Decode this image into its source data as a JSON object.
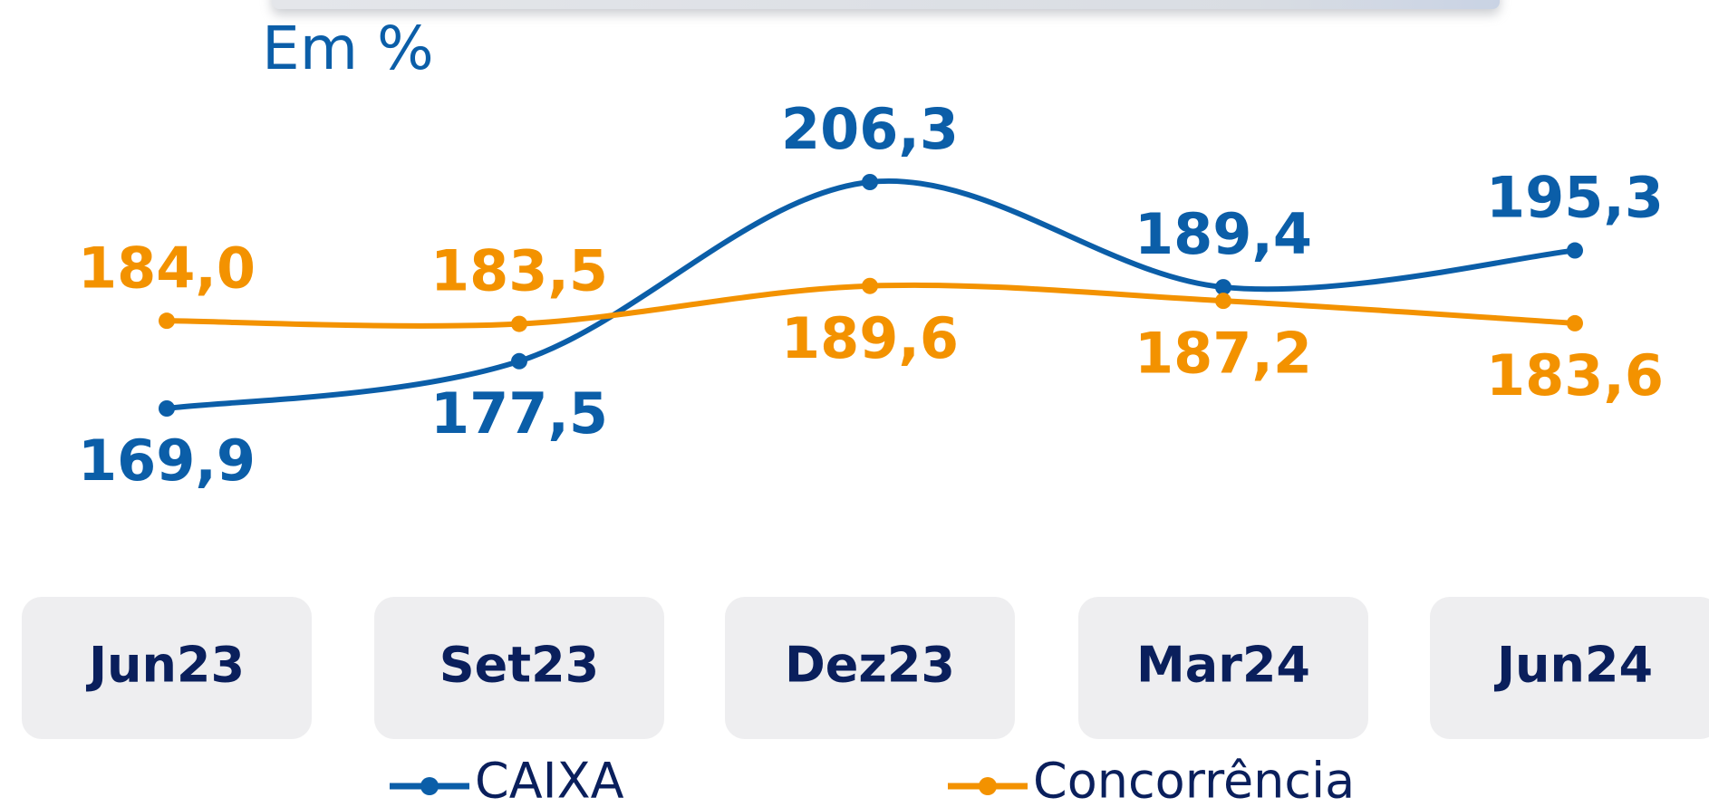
{
  "chart_data": {
    "type": "line",
    "subtitle": "Em %",
    "categories": [
      "Jun23",
      "Set23",
      "Dez23",
      "Mar24",
      "Jun24"
    ],
    "series": [
      {
        "name": "CAIXA",
        "color": "#0b5ea8",
        "values": [
          169.9,
          177.5,
          206.3,
          189.4,
          195.3
        ],
        "value_labels": [
          "169,9",
          "177,5",
          "206,3",
          "189,4",
          "195,3"
        ]
      },
      {
        "name": "Concorrência",
        "color": "#f39200",
        "values": [
          184.0,
          183.5,
          189.6,
          187.2,
          183.6
        ],
        "value_labels": [
          "184,0",
          "183,5",
          "189,6",
          "187,2",
          "183,6"
        ]
      }
    ]
  }
}
